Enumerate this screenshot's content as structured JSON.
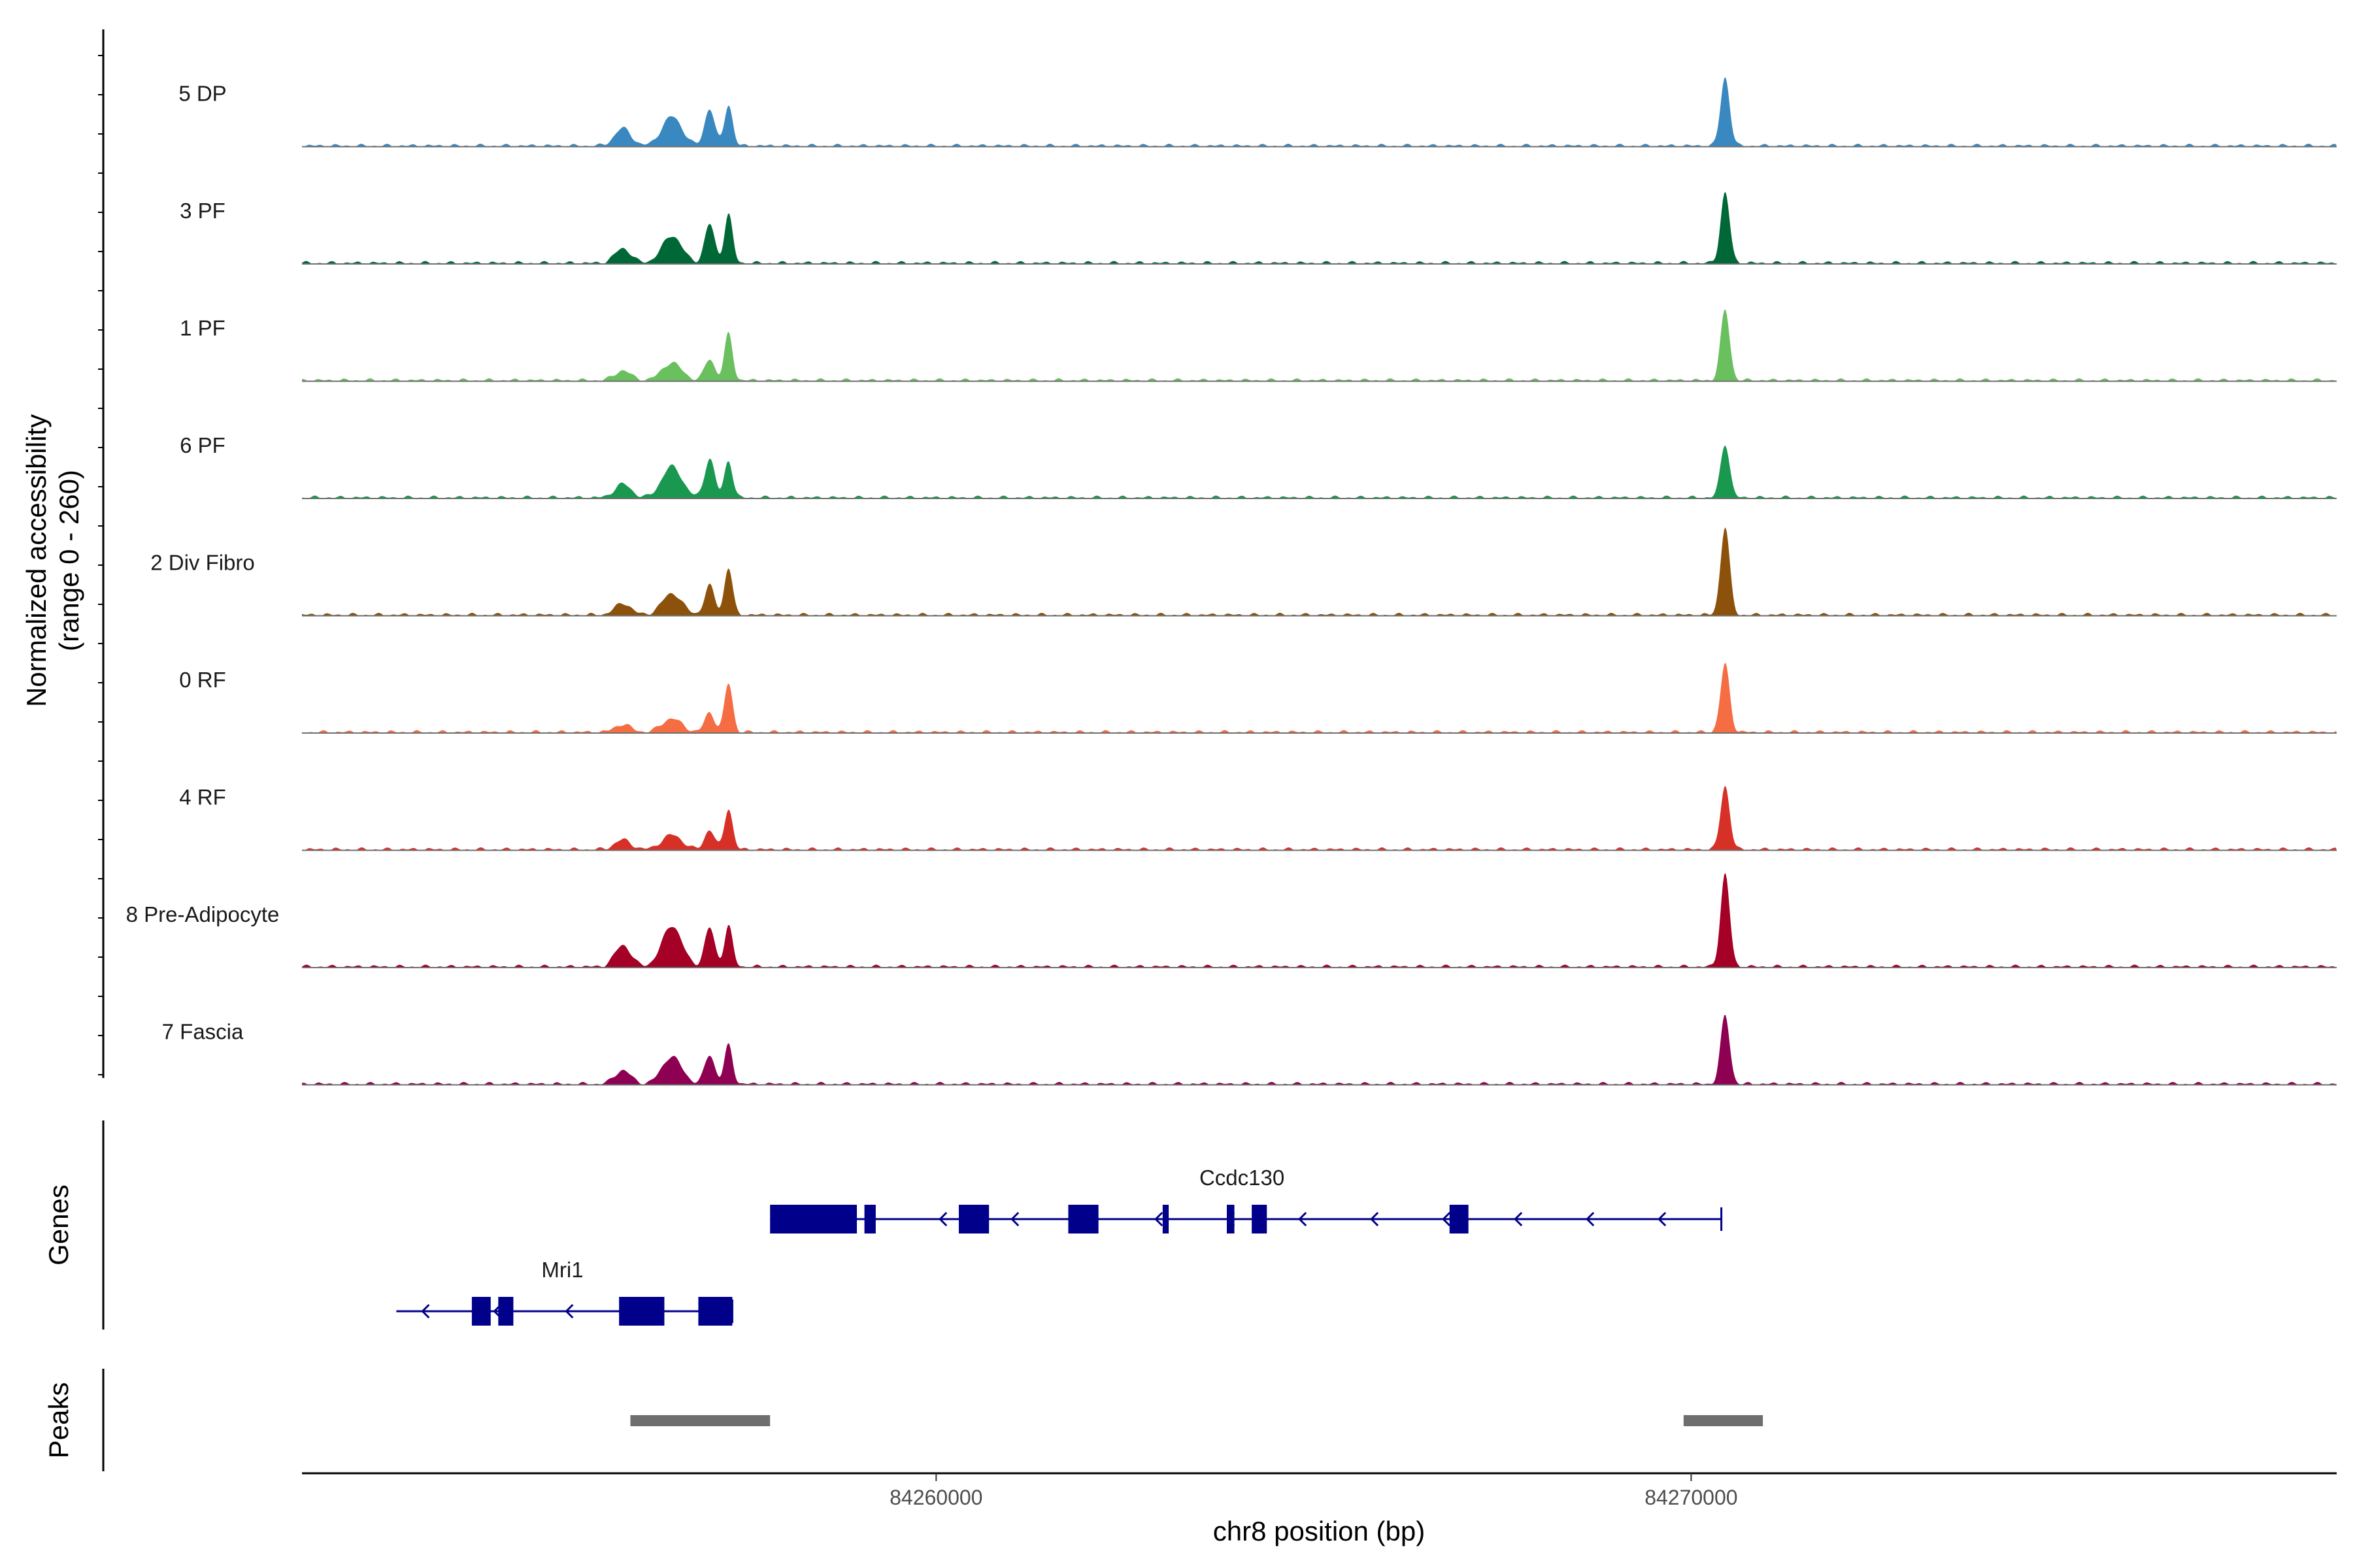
{
  "chart_data": {
    "type": "area",
    "title": "",
    "chromosome": "chr8",
    "xlabel": "chr8 position (bp)",
    "ylabel_line1": "Normalized accessibility",
    "ylabel_line2": "(range 0 - 260)",
    "xlim": [
      84251600,
      84278550
    ],
    "x_ticks": [
      84260000,
      84270000
    ],
    "x_tick_labels": [
      "84260000",
      "84270000"
    ],
    "y_range": [
      0,
      260
    ],
    "peak_profile": [
      {
        "pos": 84255850,
        "rel": 0.18
      },
      {
        "pos": 84256500,
        "rel": 0.35
      },
      {
        "pos": 84257000,
        "rel": 0.45
      },
      {
        "pos": 84257250,
        "rel": 1.0
      },
      {
        "pos": 84270450,
        "rel": 1.0
      }
    ],
    "series": [
      {
        "name": "5 DP",
        "color": "#3a88c0",
        "values": [
          0.18,
          0.3,
          0.38,
          0.42,
          0.7
        ]
      },
      {
        "name": "3 PF",
        "color": "#006837",
        "values": [
          0.15,
          0.28,
          0.4,
          0.5,
          0.72
        ]
      },
      {
        "name": "1 PF",
        "color": "#6abf5e",
        "values": [
          0.1,
          0.18,
          0.22,
          0.48,
          0.72
        ]
      },
      {
        "name": "6 PF",
        "color": "#1a9850",
        "values": [
          0.14,
          0.32,
          0.4,
          0.38,
          0.55
        ]
      },
      {
        "name": "2 Div Fibro",
        "color": "#8c510a",
        "values": [
          0.12,
          0.22,
          0.3,
          0.48,
          0.9
        ]
      },
      {
        "name": "0 RF",
        "color": "#f46d43",
        "values": [
          0.08,
          0.14,
          0.2,
          0.5,
          0.7
        ]
      },
      {
        "name": "4 RF",
        "color": "#d73027",
        "values": [
          0.1,
          0.15,
          0.2,
          0.42,
          0.65
        ]
      },
      {
        "name": "8 Pre-Adipocyte",
        "color": "#a50026",
        "values": [
          0.22,
          0.42,
          0.4,
          0.42,
          0.95
        ]
      },
      {
        "name": "7 Fascia",
        "color": "#8e0152",
        "values": [
          0.14,
          0.28,
          0.3,
          0.4,
          0.7
        ]
      }
    ],
    "genes_panel_label": "Genes",
    "genes": [
      {
        "name": "Ccdc130",
        "color": "#00008b",
        "strand": "-",
        "start": 84257800,
        "end": 84270400,
        "label_pos": 84264050,
        "exons": [
          [
            84257800,
            84258950
          ],
          [
            84259050,
            84259200
          ],
          [
            84260300,
            84260700
          ],
          [
            84261750,
            84262150
          ],
          [
            84263000,
            84263080
          ],
          [
            84263850,
            84263950
          ],
          [
            84264180,
            84264380
          ],
          [
            84266800,
            84267050
          ]
        ]
      },
      {
        "name": "Mri1",
        "color": "#00008b",
        "strand": "-",
        "start": 84252850,
        "end": 84257300,
        "label_pos": 84255050,
        "exons": [
          [
            84253850,
            84254100
          ],
          [
            84254200,
            84254400
          ],
          [
            84255800,
            84256400
          ],
          [
            84256850,
            84257300
          ]
        ]
      }
    ],
    "peaks_panel_label": "Peaks",
    "peaks": [
      {
        "start": 84255950,
        "end": 84257800
      },
      {
        "start": 84269900,
        "end": 84270950
      }
    ],
    "peaks_color": "#6e6e6e"
  }
}
